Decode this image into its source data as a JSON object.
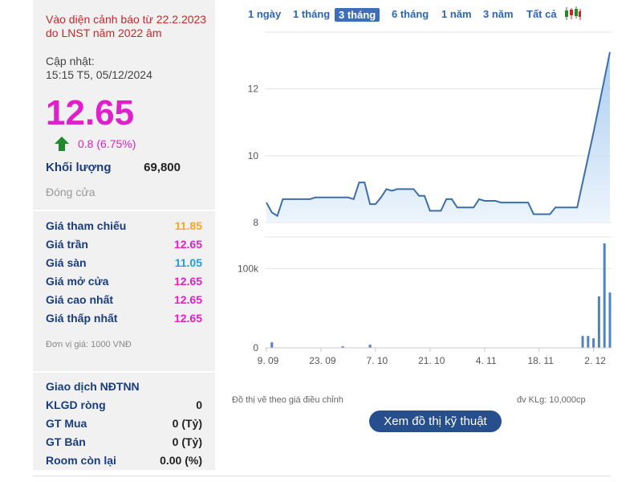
{
  "left": {
    "warning": "Vào diện cảnh báo từ 22.2.2023 do LNST năm 2022 âm",
    "updated_label": "Cập nhật:",
    "updated_time": "15:15 T5, 05/12/2024",
    "price": "12.65",
    "change": "0.8 (6.75%)",
    "volume_label": "Khối lượng",
    "volume_value": "69,800",
    "closed": "Đóng cửa",
    "stats": [
      {
        "k": "Giá tham chiếu",
        "v": "11.85",
        "color": "#f5a623"
      },
      {
        "k": "Giá trần",
        "v": "12.65",
        "color": "#e020c8"
      },
      {
        "k": "Giá sàn",
        "v": "11.05",
        "color": "#1ea0e0"
      },
      {
        "k": "Giá mở cửa",
        "v": "12.65",
        "color": "#e020c8"
      },
      {
        "k": "Giá cao nhất",
        "v": "12.65",
        "color": "#e020c8"
      },
      {
        "k": "Giá thấp nhất",
        "v": "12.65",
        "color": "#e020c8"
      }
    ],
    "unit_note": "Đơn vị giá: 1000 VNĐ",
    "foreign": [
      {
        "k": "Giao dịch NĐTNN",
        "v": ""
      },
      {
        "k": "KLGD ròng",
        "v": "0"
      },
      {
        "k": "GT Mua",
        "v": "0 (Tỷ)"
      },
      {
        "k": "GT Bán",
        "v": "0 (Tỷ)"
      },
      {
        "k": "Room còn lại",
        "v": "0.00 (%)"
      }
    ]
  },
  "nav": {
    "items": [
      "1 ngày",
      "1 tháng",
      "3 tháng",
      "6 tháng",
      "1 năm",
      "3 năm",
      "Tất cả"
    ],
    "active": 2
  },
  "footer": {
    "left": "Đồ thị vẽ theo giá điều chỉnh",
    "right": "đv KLg: 10,000cp",
    "button": "Xem đồ thị kỹ thuật"
  },
  "chart_data": [
    {
      "type": "area",
      "y_ticks": [
        "8",
        "10",
        "12"
      ],
      "ylim": [
        8,
        13.7
      ],
      "x_ticks": [
        "9. 09",
        "23. 09",
        "7. 10",
        "21. 10",
        "4. 11",
        "18. 11",
        "2. 12"
      ],
      "x": [
        "9. 09",
        "10. 09",
        "11. 09",
        "12. 09",
        "13. 09",
        "16. 09",
        "17. 09",
        "18. 09",
        "19. 09",
        "20. 09",
        "23. 09",
        "24. 09",
        "25. 09",
        "26. 09",
        "27. 09",
        "30. 09",
        "1. 10",
        "2. 10",
        "3. 10",
        "4. 10",
        "7. 10",
        "8. 10",
        "9. 10",
        "10. 10",
        "11. 10",
        "14. 10",
        "15. 10",
        "16. 10",
        "17. 10",
        "18. 10",
        "21. 10",
        "22. 10",
        "23. 10",
        "24. 10",
        "25. 10",
        "28. 10",
        "29. 10",
        "30. 10",
        "31. 10",
        "1. 11",
        "4. 11",
        "5. 11",
        "6. 11",
        "7. 11",
        "8. 11",
        "11. 11",
        "12. 11",
        "13. 11",
        "14. 11",
        "15. 11",
        "18. 11",
        "19. 11",
        "20. 11",
        "21. 11",
        "22. 11",
        "25. 11",
        "26. 11",
        "27. 11",
        "28. 11",
        "29. 11",
        "2. 12",
        "3. 12",
        "4. 12",
        "5. 12"
      ],
      "values": [
        8.6,
        8.3,
        8.2,
        8.7,
        8.7,
        8.7,
        8.7,
        8.7,
        8.7,
        8.75,
        8.75,
        8.75,
        8.75,
        8.75,
        8.75,
        8.75,
        8.7,
        9.2,
        9.2,
        8.55,
        8.55,
        8.75,
        9.0,
        8.95,
        9.0,
        9.0,
        9.0,
        9.0,
        8.8,
        8.8,
        8.35,
        8.35,
        8.35,
        8.7,
        8.7,
        8.45,
        8.45,
        8.45,
        8.45,
        8.7,
        8.65,
        8.65,
        8.65,
        8.6,
        8.6,
        8.6,
        8.6,
        8.6,
        8.6,
        8.25,
        8.25,
        8.25,
        8.25,
        8.45,
        8.45,
        8.45,
        8.45,
        8.45,
        9.2,
        9.95,
        10.7,
        11.5,
        12.3,
        13.1
      ]
    },
    {
      "type": "bar",
      "y_ticks": [
        "0",
        "100k"
      ],
      "ylim": [
        0,
        140000
      ],
      "x_ticks": [
        "9. 09",
        "23. 09",
        "7. 10",
        "21. 10",
        "4. 11",
        "18. 11",
        "2. 12"
      ],
      "values": [
        0,
        7000,
        0,
        0,
        0,
        0,
        0,
        0,
        0,
        0,
        0,
        0,
        0,
        0,
        2000,
        0,
        0,
        0,
        0,
        4000,
        0,
        0,
        0,
        0,
        0,
        0,
        0,
        0,
        0,
        0,
        0,
        0,
        0,
        0,
        0,
        0,
        0,
        0,
        0,
        0,
        0,
        0,
        0,
        0,
        0,
        0,
        0,
        0,
        0,
        0,
        0,
        0,
        0,
        0,
        0,
        0,
        0,
        0,
        15000,
        15000,
        12000,
        65000,
        132000,
        69800
      ]
    }
  ],
  "colors": {
    "line": "#3d6ea9",
    "area_top": "#9cc3ee",
    "area_bottom": "#eaf3fc",
    "bar": "#4f84bf",
    "grid": "#e3e3e3"
  }
}
